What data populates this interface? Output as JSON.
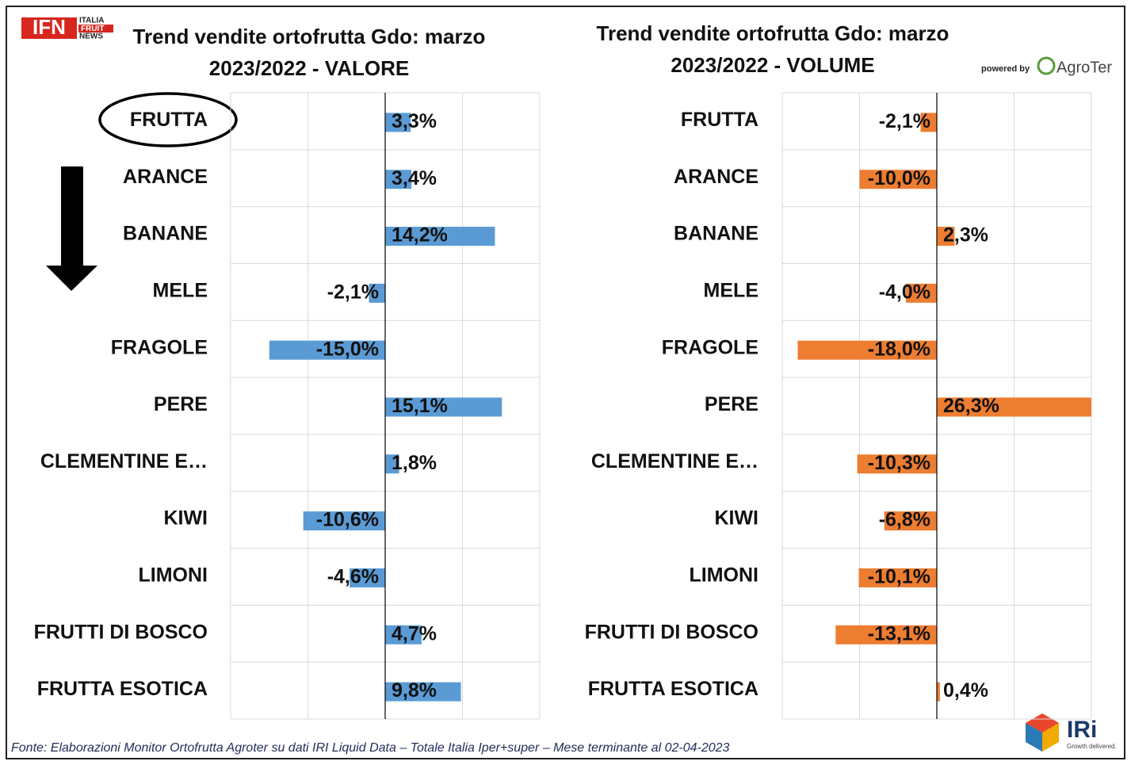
{
  "chart_data": [
    {
      "type": "bar",
      "orientation": "horizontal",
      "title": "Trend vendite ortofrutta Gdo: marzo\n2023/2022 - VALORE",
      "categories": [
        "FRUTTA",
        "ARANCE",
        "BANANE",
        "MELE",
        "FRAGOLE",
        "PERE",
        "CLEMENTINE E…",
        "KIWI",
        "LIMONI",
        "FRUTTI DI BOSCO",
        "FRUTTA ESOTICA"
      ],
      "values": [
        3.3,
        3.4,
        14.2,
        -2.1,
        -15.0,
        15.1,
        1.8,
        -10.6,
        -4.6,
        4.7,
        9.8
      ],
      "value_labels": [
        "3,3%",
        "3,4%",
        "14,2%",
        "-2,1%",
        "-15,0%",
        "15,1%",
        "1,8%",
        "-10,6%",
        "-4,6%",
        "4,7%",
        "9,8%"
      ],
      "color": "#5b9bd5",
      "xlim": [
        -20,
        20
      ],
      "xticks": [
        -20,
        -10,
        0,
        10,
        20
      ],
      "grid": true
    },
    {
      "type": "bar",
      "orientation": "horizontal",
      "title": "Trend vendite ortofrutta Gdo: marzo\n2023/2022 - VOLUME",
      "categories": [
        "FRUTTA",
        "ARANCE",
        "BANANE",
        "MELE",
        "FRAGOLE",
        "PERE",
        "CLEMENTINE E…",
        "KIWI",
        "LIMONI",
        "FRUTTI DI BOSCO",
        "FRUTTA ESOTICA"
      ],
      "values": [
        -2.1,
        -10.0,
        2.3,
        -4.0,
        -18.0,
        26.3,
        -10.3,
        -6.8,
        -10.1,
        -13.1,
        0.4
      ],
      "value_labels": [
        "-2,1%",
        "-10,0%",
        "2,3%",
        "-4,0%",
        "-18,0%",
        "26,3%",
        "-10,3%",
        "-6,8%",
        "-10,1%",
        "-13,1%",
        "0,4%"
      ],
      "color": "#ed7d31",
      "xlim": [
        -20,
        20
      ],
      "xticks": [
        -20,
        -10,
        0,
        10,
        20
      ],
      "grid": true
    }
  ],
  "logo_left": {
    "mark": "IFN",
    "lines": [
      "ITALIA",
      "FRUIT",
      "NEWS"
    ]
  },
  "logo_right": {
    "powered": "powered by",
    "brand": "AgroTer"
  },
  "logo_iri": {
    "brand": "IRi",
    "tagline": "Growth delivered."
  },
  "footer": "Fonte: Elaborazioni Monitor Ortofrutta Agroter su dati IRI Liquid Data – Totale Italia Iper+super – Mese terminante al 02-04-2023"
}
